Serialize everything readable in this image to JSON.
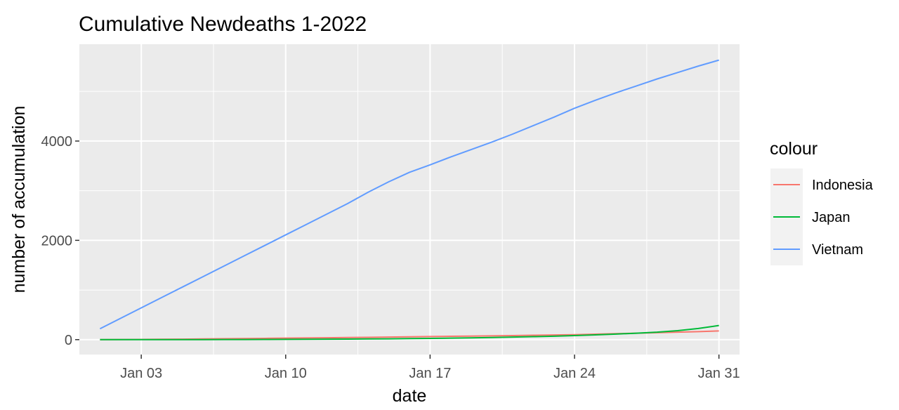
{
  "chart_data": {
    "type": "line",
    "title": "Cumulative Newdeaths 1-2022",
    "xlabel": "date",
    "ylabel": "number of accumulation",
    "x_ticks": [
      {
        "date": "2022-01-03",
        "label": "Jan 03"
      },
      {
        "date": "2022-01-10",
        "label": "Jan 10"
      },
      {
        "date": "2022-01-17",
        "label": "Jan 17"
      },
      {
        "date": "2022-01-24",
        "label": "Jan 24"
      },
      {
        "date": "2022-01-31",
        "label": "Jan 31"
      }
    ],
    "y_ticks": [
      0,
      2000,
      4000
    ],
    "xlim": [
      "2021-12-31",
      "2022-02-01"
    ],
    "ylim": [
      -300,
      5950
    ],
    "legend": {
      "title": "colour",
      "position": "right"
    },
    "series": [
      {
        "name": "Indonesia",
        "color": "#F8766D",
        "points": [
          [
            "2022-01-01",
            0
          ],
          [
            "2022-01-02",
            2
          ],
          [
            "2022-01-03",
            4
          ],
          [
            "2022-01-04",
            7
          ],
          [
            "2022-01-05",
            10
          ],
          [
            "2022-01-06",
            14
          ],
          [
            "2022-01-07",
            18
          ],
          [
            "2022-01-08",
            22
          ],
          [
            "2022-01-09",
            26
          ],
          [
            "2022-01-10",
            30
          ],
          [
            "2022-01-11",
            34
          ],
          [
            "2022-01-12",
            38
          ],
          [
            "2022-01-13",
            42
          ],
          [
            "2022-01-14",
            47
          ],
          [
            "2022-01-15",
            52
          ],
          [
            "2022-01-16",
            57
          ],
          [
            "2022-01-17",
            62
          ],
          [
            "2022-01-18",
            67
          ],
          [
            "2022-01-19",
            72
          ],
          [
            "2022-01-20",
            77
          ],
          [
            "2022-01-21",
            82
          ],
          [
            "2022-01-22",
            88
          ],
          [
            "2022-01-23",
            94
          ],
          [
            "2022-01-24",
            100
          ],
          [
            "2022-01-25",
            110
          ],
          [
            "2022-01-26",
            120
          ],
          [
            "2022-01-27",
            130
          ],
          [
            "2022-01-28",
            140
          ],
          [
            "2022-01-29",
            150
          ],
          [
            "2022-01-30",
            162
          ],
          [
            "2022-01-31",
            175
          ]
        ]
      },
      {
        "name": "Japan",
        "color": "#00BA38",
        "points": [
          [
            "2022-01-01",
            0
          ],
          [
            "2022-01-02",
            0
          ],
          [
            "2022-01-03",
            0
          ],
          [
            "2022-01-04",
            0
          ],
          [
            "2022-01-05",
            1
          ],
          [
            "2022-01-06",
            1
          ],
          [
            "2022-01-07",
            2
          ],
          [
            "2022-01-08",
            3
          ],
          [
            "2022-01-09",
            4
          ],
          [
            "2022-01-10",
            5
          ],
          [
            "2022-01-11",
            7
          ],
          [
            "2022-01-12",
            9
          ],
          [
            "2022-01-13",
            11
          ],
          [
            "2022-01-14",
            14
          ],
          [
            "2022-01-15",
            17
          ],
          [
            "2022-01-16",
            21
          ],
          [
            "2022-01-17",
            25
          ],
          [
            "2022-01-18",
            30
          ],
          [
            "2022-01-19",
            36
          ],
          [
            "2022-01-20",
            43
          ],
          [
            "2022-01-21",
            51
          ],
          [
            "2022-01-22",
            60
          ],
          [
            "2022-01-23",
            70
          ],
          [
            "2022-01-24",
            82
          ],
          [
            "2022-01-25",
            96
          ],
          [
            "2022-01-26",
            112
          ],
          [
            "2022-01-27",
            130
          ],
          [
            "2022-01-28",
            150
          ],
          [
            "2022-01-29",
            180
          ],
          [
            "2022-01-30",
            225
          ],
          [
            "2022-01-31",
            285
          ]
        ]
      },
      {
        "name": "Vietnam",
        "color": "#619CFF",
        "points": [
          [
            "2022-01-01",
            220
          ],
          [
            "2022-01-02",
            430
          ],
          [
            "2022-01-03",
            640
          ],
          [
            "2022-01-04",
            850
          ],
          [
            "2022-01-05",
            1060
          ],
          [
            "2022-01-06",
            1270
          ],
          [
            "2022-01-07",
            1480
          ],
          [
            "2022-01-08",
            1690
          ],
          [
            "2022-01-09",
            1900
          ],
          [
            "2022-01-10",
            2110
          ],
          [
            "2022-01-11",
            2320
          ],
          [
            "2022-01-12",
            2530
          ],
          [
            "2022-01-13",
            2740
          ],
          [
            "2022-01-14",
            2970
          ],
          [
            "2022-01-15",
            3180
          ],
          [
            "2022-01-16",
            3370
          ],
          [
            "2022-01-17",
            3520
          ],
          [
            "2022-01-18",
            3680
          ],
          [
            "2022-01-19",
            3830
          ],
          [
            "2022-01-20",
            3980
          ],
          [
            "2022-01-21",
            4140
          ],
          [
            "2022-01-22",
            4310
          ],
          [
            "2022-01-23",
            4480
          ],
          [
            "2022-01-24",
            4660
          ],
          [
            "2022-01-25",
            4820
          ],
          [
            "2022-01-26",
            4970
          ],
          [
            "2022-01-27",
            5110
          ],
          [
            "2022-01-28",
            5250
          ],
          [
            "2022-01-29",
            5380
          ],
          [
            "2022-01-30",
            5510
          ],
          [
            "2022-01-31",
            5630
          ]
        ]
      }
    ]
  }
}
